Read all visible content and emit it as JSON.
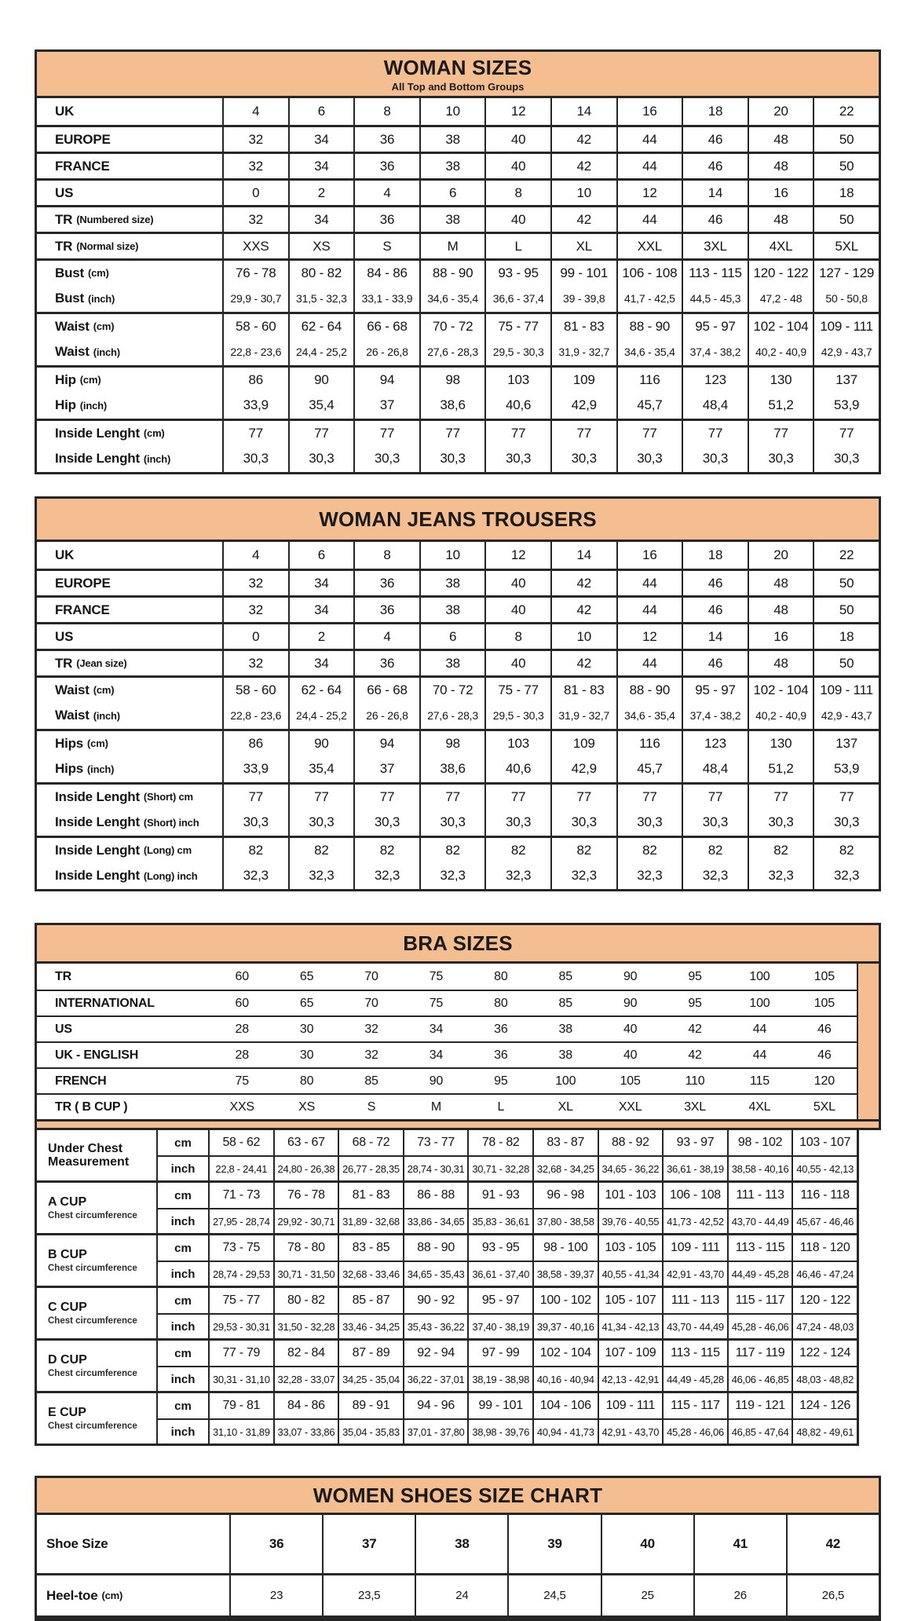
{
  "colors": {
    "accent": "#F5BE90",
    "border": "#262626",
    "text": "#141414",
    "page_bg": "#FFFFFF"
  },
  "woman_sizes": {
    "title": "WOMAN SIZES",
    "subtitle": "All Top and Bottom Groups",
    "groups": [
      {
        "rows": [
          {
            "label": "UK",
            "note": "",
            "size": "lg",
            "values": [
              "4",
              "6",
              "8",
              "10",
              "12",
              "14",
              "16",
              "18",
              "20",
              "22"
            ]
          }
        ]
      },
      {
        "rows": [
          {
            "label": "EUROPE",
            "note": "",
            "size": "lg",
            "values": [
              "32",
              "34",
              "36",
              "38",
              "40",
              "42",
              "44",
              "46",
              "48",
              "50"
            ]
          }
        ]
      },
      {
        "rows": [
          {
            "label": "FRANCE",
            "note": "",
            "size": "lg",
            "values": [
              "32",
              "34",
              "36",
              "38",
              "40",
              "42",
              "44",
              "46",
              "48",
              "50"
            ]
          }
        ]
      },
      {
        "rows": [
          {
            "label": "US",
            "note": "",
            "size": "lg",
            "values": [
              "0",
              "2",
              "4",
              "6",
              "8",
              "10",
              "12",
              "14",
              "16",
              "18"
            ]
          }
        ]
      },
      {
        "rows": [
          {
            "label": "TR",
            "note": "(Numbered size)",
            "size": "lg",
            "values": [
              "32",
              "34",
              "36",
              "38",
              "40",
              "42",
              "44",
              "46",
              "48",
              "50"
            ]
          }
        ]
      },
      {
        "rows": [
          {
            "label": "TR",
            "note": "(Normal size)",
            "size": "lg",
            "values": [
              "XXS",
              "XS",
              "S",
              "M",
              "L",
              "XL",
              "XXL",
              "3XL",
              "4XL",
              "5XL"
            ]
          }
        ]
      },
      {
        "rows": [
          {
            "label": "Bust",
            "note": "(cm)",
            "size": "lg",
            "values": [
              "76 - 78",
              "80 - 82",
              "84 - 86",
              "88 - 90",
              "93 - 95",
              "99 - 101",
              "106 - 108",
              "113 - 115",
              "120 - 122",
              "127 - 129"
            ]
          },
          {
            "label": "Bust",
            "note": "(inch)",
            "size": "sm",
            "values": [
              "29,9 - 30,7",
              "31,5 - 32,3",
              "33,1 - 33,9",
              "34,6 - 35,4",
              "36,6 - 37,4",
              "39 - 39,8",
              "41,7 - 42,5",
              "44,5 - 45,3",
              "47,2 - 48",
              "50 - 50,8"
            ]
          }
        ]
      },
      {
        "rows": [
          {
            "label": "Waist",
            "note": "(cm)",
            "size": "lg",
            "values": [
              "58 - 60",
              "62 - 64",
              "66 - 68",
              "70 - 72",
              "75 - 77",
              "81 - 83",
              "88 - 90",
              "95 - 97",
              "102 - 104",
              "109 - 111"
            ]
          },
          {
            "label": "Waist",
            "note": "(inch)",
            "size": "sm",
            "values": [
              "22,8 - 23,6",
              "24,4 - 25,2",
              "26 - 26,8",
              "27,6 - 28,3",
              "29,5 - 30,3",
              "31,9 - 32,7",
              "34,6 - 35,4",
              "37,4 - 38,2",
              "40,2 - 40,9",
              "42,9 - 43,7"
            ]
          }
        ]
      },
      {
        "rows": [
          {
            "label": "Hip",
            "note": "(cm)",
            "size": "lg",
            "values": [
              "86",
              "90",
              "94",
              "98",
              "103",
              "109",
              "116",
              "123",
              "130",
              "137"
            ]
          },
          {
            "label": "Hip",
            "note": "(inch)",
            "size": "lg",
            "values": [
              "33,9",
              "35,4",
              "37",
              "38,6",
              "40,6",
              "42,9",
              "45,7",
              "48,4",
              "51,2",
              "53,9"
            ]
          }
        ]
      },
      {
        "rows": [
          {
            "label": "Inside Lenght",
            "note": "(cm)",
            "size": "lg",
            "values": [
              "77",
              "77",
              "77",
              "77",
              "77",
              "77",
              "77",
              "77",
              "77",
              "77"
            ]
          },
          {
            "label": "Inside Lenght",
            "note": "(inch)",
            "size": "lg",
            "values": [
              "30,3",
              "30,3",
              "30,3",
              "30,3",
              "30,3",
              "30,3",
              "30,3",
              "30,3",
              "30,3",
              "30,3"
            ]
          }
        ]
      }
    ]
  },
  "woman_jeans": {
    "title": "WOMAN JEANS TROUSERS",
    "groups": [
      {
        "rows": [
          {
            "label": "UK",
            "note": "",
            "size": "lg",
            "values": [
              "4",
              "6",
              "8",
              "10",
              "12",
              "14",
              "16",
              "18",
              "20",
              "22"
            ]
          }
        ]
      },
      {
        "rows": [
          {
            "label": "EUROPE",
            "note": "",
            "size": "lg",
            "values": [
              "32",
              "34",
              "36",
              "38",
              "40",
              "42",
              "44",
              "46",
              "48",
              "50"
            ]
          }
        ]
      },
      {
        "rows": [
          {
            "label": "FRANCE",
            "note": "",
            "size": "lg",
            "values": [
              "32",
              "34",
              "36",
              "38",
              "40",
              "42",
              "44",
              "46",
              "48",
              "50"
            ]
          }
        ]
      },
      {
        "rows": [
          {
            "label": "US",
            "note": "",
            "size": "lg",
            "values": [
              "0",
              "2",
              "4",
              "6",
              "8",
              "10",
              "12",
              "14",
              "16",
              "18"
            ]
          }
        ]
      },
      {
        "rows": [
          {
            "label": "TR",
            "note": "(Jean size)",
            "size": "lg",
            "values": [
              "32",
              "34",
              "36",
              "38",
              "40",
              "42",
              "44",
              "46",
              "48",
              "50"
            ]
          }
        ]
      },
      {
        "rows": [
          {
            "label": "Waist",
            "note": "(cm)",
            "size": "lg",
            "values": [
              "58 - 60",
              "62 - 64",
              "66 - 68",
              "70 - 72",
              "75 - 77",
              "81 - 83",
              "88 - 90",
              "95 - 97",
              "102 - 104",
              "109 - 111"
            ]
          },
          {
            "label": "Waist",
            "note": "(inch)",
            "size": "sm",
            "values": [
              "22,8 - 23,6",
              "24,4 - 25,2",
              "26 - 26,8",
              "27,6 - 28,3",
              "29,5 - 30,3",
              "31,9 - 32,7",
              "34,6 - 35,4",
              "37,4 - 38,2",
              "40,2 - 40,9",
              "42,9 - 43,7"
            ]
          }
        ]
      },
      {
        "rows": [
          {
            "label": "Hips",
            "note": "(cm)",
            "size": "lg",
            "values": [
              "86",
              "90",
              "94",
              "98",
              "103",
              "109",
              "116",
              "123",
              "130",
              "137"
            ]
          },
          {
            "label": "Hips",
            "note": "(inch)",
            "size": "lg",
            "values": [
              "33,9",
              "35,4",
              "37",
              "38,6",
              "40,6",
              "42,9",
              "45,7",
              "48,4",
              "51,2",
              "53,9"
            ]
          }
        ]
      },
      {
        "rows": [
          {
            "label": "Inside Lenght",
            "note": "(Short) cm",
            "size": "lg",
            "values": [
              "77",
              "77",
              "77",
              "77",
              "77",
              "77",
              "77",
              "77",
              "77",
              "77"
            ]
          },
          {
            "label": "Inside Lenght",
            "note": "(Short) inch",
            "size": "lg",
            "values": [
              "30,3",
              "30,3",
              "30,3",
              "30,3",
              "30,3",
              "30,3",
              "30,3",
              "30,3",
              "30,3",
              "30,3"
            ]
          }
        ]
      },
      {
        "rows": [
          {
            "label": "Inside Lenght",
            "note": "(Long) cm",
            "size": "lg",
            "values": [
              "82",
              "82",
              "82",
              "82",
              "82",
              "82",
              "82",
              "82",
              "82",
              "82"
            ]
          },
          {
            "label": "Inside Lenght",
            "note": "(Long) inch",
            "size": "lg",
            "values": [
              "32,3",
              "32,3",
              "32,3",
              "32,3",
              "32,3",
              "32,3",
              "32,3",
              "32,3",
              "32,3",
              "32,3"
            ]
          }
        ]
      }
    ]
  },
  "bra_sizes": {
    "title": "BRA SIZES",
    "plain_rows": [
      {
        "label": "TR",
        "values": [
          "60",
          "65",
          "70",
          "75",
          "80",
          "85",
          "90",
          "95",
          "100",
          "105"
        ]
      },
      {
        "label": "INTERNATIONAL",
        "values": [
          "60",
          "65",
          "70",
          "75",
          "80",
          "85",
          "90",
          "95",
          "100",
          "105"
        ]
      },
      {
        "label": "US",
        "values": [
          "28",
          "30",
          "32",
          "34",
          "36",
          "38",
          "40",
          "42",
          "44",
          "46"
        ]
      },
      {
        "label": "UK - ENGLISH",
        "values": [
          "28",
          "30",
          "32",
          "34",
          "36",
          "38",
          "40",
          "42",
          "44",
          "46"
        ]
      },
      {
        "label": "FRENCH",
        "values": [
          "75",
          "80",
          "85",
          "90",
          "95",
          "100",
          "105",
          "110",
          "115",
          "120"
        ]
      },
      {
        "label": "TR ( B CUP )",
        "values": [
          "XXS",
          "XS",
          "S",
          "M",
          "L",
          "XL",
          "XXL",
          "3XL",
          "4XL",
          "5XL"
        ]
      }
    ],
    "unit_cm": "cm",
    "unit_inch": "inch",
    "cup_groups": [
      {
        "label": "Under Chest Measurement",
        "note": "",
        "cm": [
          "58 - 62",
          "63 - 67",
          "68 - 72",
          "73 - 77",
          "78 - 82",
          "83 - 87",
          "88 - 92",
          "93 - 97",
          "98 - 102",
          "103 - 107"
        ],
        "inch": [
          "22,8 - 24,41",
          "24,80 - 26,38",
          "26,77 - 28,35",
          "28,74 - 30,31",
          "30,71 - 32,28",
          "32,68 - 34,25",
          "34,65 - 36,22",
          "36,61 - 38,19",
          "38,58 - 40,16",
          "40,55 - 42,13"
        ]
      },
      {
        "label": "A CUP",
        "note": "Chest circumference",
        "cm": [
          "71 - 73",
          "76 - 78",
          "81 - 83",
          "86 - 88",
          "91 - 93",
          "96 - 98",
          "101 - 103",
          "106 - 108",
          "111 - 113",
          "116 - 118"
        ],
        "inch": [
          "27,95 - 28,74",
          "29,92 - 30,71",
          "31,89 - 32,68",
          "33,86 - 34,65",
          "35,83 - 36,61",
          "37,80 - 38,58",
          "39,76 - 40,55",
          "41,73 - 42,52",
          "43,70 - 44,49",
          "45,67 - 46,46"
        ]
      },
      {
        "label": "B CUP",
        "note": "Chest circumference",
        "cm": [
          "73 - 75",
          "78 - 80",
          "83 - 85",
          "88 - 90",
          "93 - 95",
          "98 - 100",
          "103 - 105",
          "109 - 111",
          "113 - 115",
          "118 - 120"
        ],
        "inch": [
          "28,74 - 29,53",
          "30,71 - 31,50",
          "32,68 - 33,46",
          "34,65 - 35,43",
          "36,61 - 37,40",
          "38,58 - 39,37",
          "40,55 - 41,34",
          "42,91 - 43,70",
          "44,49 - 45,28",
          "46,46 - 47,24"
        ]
      },
      {
        "label": "C CUP",
        "note": "Chest circumference",
        "cm": [
          "75 - 77",
          "80 - 82",
          "85 - 87",
          "90 - 92",
          "95 - 97",
          "100 - 102",
          "105 - 107",
          "111 - 113",
          "115 - 117",
          "120 - 122"
        ],
        "inch": [
          "29,53 - 30,31",
          "31,50 - 32,28",
          "33,46 - 34,25",
          "35,43 - 36,22",
          "37,40 - 38,19",
          "39,37 - 40,16",
          "41,34 - 42,13",
          "43,70 - 44,49",
          "45,28 - 46,06",
          "47,24 - 48,03"
        ]
      },
      {
        "label": "D CUP",
        "note": "Chest circumference",
        "cm": [
          "77 - 79",
          "82 - 84",
          "87 - 89",
          "92 - 94",
          "97 - 99",
          "102 - 104",
          "107 - 109",
          "113 - 115",
          "117 - 119",
          "122 - 124"
        ],
        "inch": [
          "30,31 - 31,10",
          "32,28 - 33,07",
          "34,25 - 35,04",
          "36,22 - 37,01",
          "38,19 - 38,98",
          "40,16 - 40,94",
          "42,13 - 42,91",
          "44,49 - 45,28",
          "46,06 - 46,85",
          "48,03 - 48,82"
        ]
      },
      {
        "label": "E CUP",
        "note": "Chest circumference",
        "cm": [
          "79 - 81",
          "84 - 86",
          "89 - 91",
          "94 - 96",
          "99 - 101",
          "104 - 106",
          "109 - 111",
          "115 - 117",
          "119 - 121",
          "124 - 126"
        ],
        "inch": [
          "31,10 - 31,89",
          "33,07 - 33,86",
          "35,04 - 35,83",
          "37,01 - 37,80",
          "38,98 - 39,76",
          "40,94 - 41,73",
          "42,91 - 43,70",
          "45,28 - 46,06",
          "46,85 - 47,64",
          "48,82 - 49,61"
        ]
      }
    ]
  },
  "shoes": {
    "title": "WOMEN SHOES SIZE CHART",
    "rows": [
      {
        "label": "Shoe Size",
        "note": "",
        "values": [
          "36",
          "37",
          "38",
          "39",
          "40",
          "41",
          "42"
        ]
      },
      {
        "label": "Heel-toe",
        "note": "(cm)",
        "values": [
          "23",
          "23,5",
          "24",
          "24,5",
          "25",
          "26",
          "26,5"
        ]
      }
    ]
  }
}
